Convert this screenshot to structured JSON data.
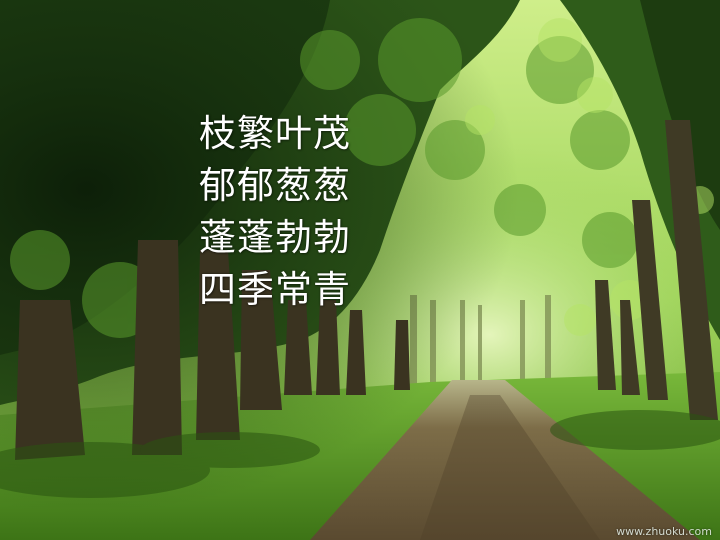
{
  "poem": {
    "lines": [
      "枝繁叶茂",
      "郁郁葱葱",
      "蓬蓬勃勃",
      "四季常青"
    ]
  },
  "watermark": "www.zhuoku.com",
  "scene": {
    "subject": "tree-lined forest path",
    "colors": {
      "canopy_dark": "#173210",
      "canopy_mid": "#3f7a22",
      "canopy_light": "#a8e05a",
      "grass": "#4f8f1f",
      "path": "#6b5a3a",
      "bark": "#3a3320"
    }
  }
}
